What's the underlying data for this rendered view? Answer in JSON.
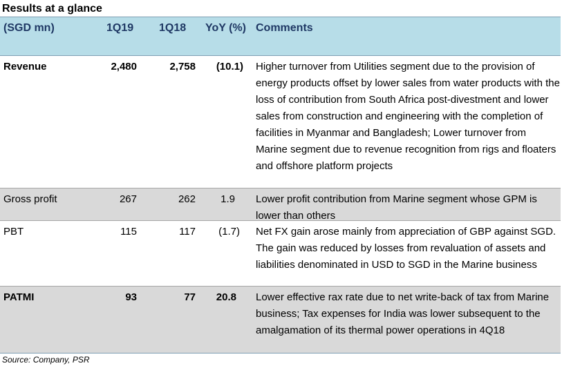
{
  "title": "Results at a glance",
  "header": {
    "label": "(SGD mn)",
    "q_current": "1Q19",
    "q_prior": "1Q18",
    "yoy": "YoY (%)",
    "comments": "Comments"
  },
  "rows": [
    {
      "label": "Revenue",
      "q_current": "2,480",
      "q_prior": "2,758",
      "yoy": "(10.1)",
      "comment": "Higher turnover from Utilities segment due to the provision of energy products offset by lower sales from water products with the loss of contribution from South Africa post-divestment and lower sales from construction and engineering with the completion of facilities in Myanmar and Bangladesh; Lower turnover from Marine segment due to revenue recognition from rigs and floaters and offshore platform projects"
    },
    {
      "label": "Gross profit",
      "q_current": "267",
      "q_prior": "262",
      "yoy": "1.9",
      "comment": "Lower profit contribution from Marine segment whose GPM is lower than others"
    },
    {
      "label": "PBT",
      "q_current": "115",
      "q_prior": "117",
      "yoy": "(1.7)",
      "comment": "Net FX gain arose mainly from appreciation of GBP against SGD. The gain was reduced by losses from revaluation of assets and liabilities denominated in USD to SGD in the Marine business"
    },
    {
      "label": "PATMI",
      "q_current": "93",
      "q_prior": "77",
      "yoy": "20.8",
      "comment": "Lower effective rax rate due to net write-back of tax from Marine business; Tax expenses for India was lower subsequent to the amalgamation of its thermal power operations in 4Q18"
    }
  ],
  "source": "Source: Company, PSR",
  "colors": {
    "header_bg": "#b7dde8",
    "header_text": "#1f3864",
    "shaded_row": "#d9d9d9"
  }
}
